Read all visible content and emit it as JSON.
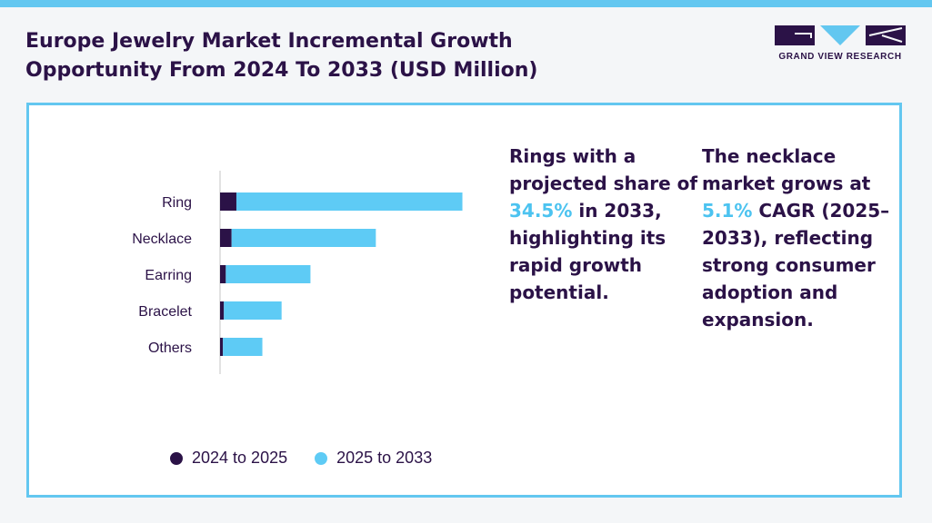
{
  "header": {
    "title": "Europe Jewelry Market Incremental Growth Opportunity From 2024 To 2033 (USD Million)",
    "brand": "GRAND VIEW RESEARCH"
  },
  "colors": {
    "primary": "#2b1247",
    "accent": "#63c7f0",
    "highlight": "#4cc3f0"
  },
  "callouts": {
    "rings": {
      "pre": "Rings with a projected share of ",
      "value": "34.5%",
      "post": " in 2033, highlighting its rapid growth potential."
    },
    "necklace": {
      "pre": "The necklace market grows at ",
      "value": "5.1%",
      "post": " CAGR (2025–2033), reflecting strong consumer adoption and expansion."
    }
  },
  "chart_data": {
    "type": "bar",
    "orientation": "horizontal",
    "stacked": true,
    "title": "",
    "categories": [
      "Ring",
      "Necklace",
      "Earring",
      "Bracelet",
      "Others"
    ],
    "series": [
      {
        "name": "2024 to 2025",
        "color": "#2b1247",
        "values": [
          17,
          12,
          6,
          4,
          3
        ]
      },
      {
        "name": "2025 to 2033",
        "color": "#5ecbf5",
        "values": [
          235,
          150,
          88,
          60,
          41
        ]
      }
    ],
    "xlim": [
      0,
      260
    ],
    "legend": "bottom-left",
    "grid": false
  }
}
